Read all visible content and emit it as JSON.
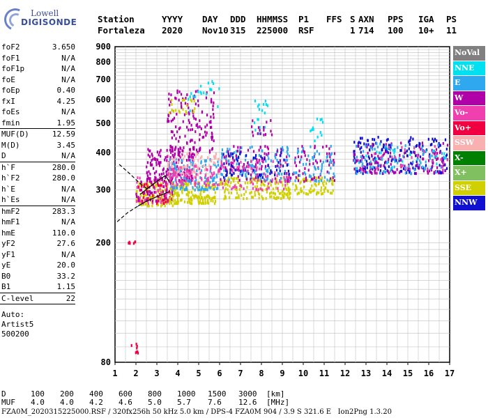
{
  "logo": {
    "line1": "Lowell",
    "line2": "DIGISONDE"
  },
  "header": {
    "row1": [
      "Station",
      "YYYY",
      "DAY",
      "DDD",
      "HHMMSS",
      "P1",
      "FFS",
      "S",
      "AXN",
      "PPS",
      "IGA",
      "PS"
    ],
    "row2": [
      "Fortaleza",
      "2020",
      "Nov10",
      "315",
      "225000",
      "RSF",
      "",
      "1",
      "714",
      "100",
      "10+",
      "11"
    ]
  },
  "params_groups": [
    [
      {
        "label": "foF2",
        "value": "3.650"
      },
      {
        "label": "foF1",
        "value": "N/A"
      },
      {
        "label": "foF1p",
        "value": "N/A"
      },
      {
        "label": "foE",
        "value": "N/A"
      },
      {
        "label": "foEp",
        "value": "0.40"
      },
      {
        "label": "fxI",
        "value": "4.25"
      },
      {
        "label": "foEs",
        "value": "N/A"
      },
      {
        "label": "fmin",
        "value": "1.95"
      }
    ],
    [
      {
        "label": "MUF(D)",
        "value": "12.59"
      },
      {
        "label": "M(D)",
        "value": "3.45"
      },
      {
        "label": "D",
        "value": "N/A"
      }
    ],
    [
      {
        "label": "h`F",
        "value": "280.0"
      },
      {
        "label": "h`F2",
        "value": "280.0"
      },
      {
        "label": "h`E",
        "value": "N/A"
      },
      {
        "label": "h`Es",
        "value": "N/A"
      }
    ],
    [
      {
        "label": "hmF2",
        "value": "283.3"
      },
      {
        "label": "hmF1",
        "value": "N/A"
      },
      {
        "label": "hmE",
        "value": "110.0"
      },
      {
        "label": "yF2",
        "value": "27.6"
      },
      {
        "label": "yF1",
        "value": "N/A"
      },
      {
        "label": "yE",
        "value": "20.0"
      },
      {
        "label": "B0",
        "value": "33.2"
      },
      {
        "label": "B1",
        "value": "1.15"
      }
    ],
    [
      {
        "label": "C-level",
        "value": "22"
      }
    ]
  ],
  "auto": [
    "Auto:",
    "Artist5",
    "500200"
  ],
  "legend": [
    {
      "label": "NoVal",
      "color": "#808080"
    },
    {
      "label": "NNE",
      "color": "#00e0f0"
    },
    {
      "label": "E",
      "color": "#30a8f0"
    },
    {
      "label": "W",
      "color": "#b000a8"
    },
    {
      "label": "Vo-",
      "color": "#f040b0"
    },
    {
      "label": "Vo+",
      "color": "#f00040"
    },
    {
      "label": "SSW",
      "color": "#f8b0b0"
    },
    {
      "label": "X-",
      "color": "#008000"
    },
    {
      "label": "X+",
      "color": "#80c060"
    },
    {
      "label": "SSE",
      "color": "#d0d000"
    },
    {
      "label": "NNW",
      "color": "#1010d0"
    }
  ],
  "chart_data": {
    "type": "scatter",
    "x_ticks": [
      "1",
      "2",
      "3",
      "4",
      "5",
      "6",
      "7",
      "8",
      "9",
      "10",
      "11",
      "12",
      "13",
      "14",
      "15",
      "16",
      "17"
    ],
    "y_ticks": [
      "80",
      "200",
      "300",
      "400",
      "500",
      "600",
      "700",
      "800",
      "900"
    ],
    "xlim": [
      1,
      17
    ],
    "ylim": [
      80,
      900
    ],
    "y_scale": "log",
    "grid": true,
    "clusters": [
      {
        "x": [
          1.7,
          2.2
        ],
        "y": [
          85,
          92
        ],
        "color": "#f00040",
        "n": 8
      },
      {
        "x": [
          1.6,
          2.0
        ],
        "y": [
          198,
          202
        ],
        "color": "#f00040",
        "n": 6
      },
      {
        "x": [
          2.0,
          3.8
        ],
        "y": [
          265,
          320
        ],
        "color": "#d0d000",
        "n": 120
      },
      {
        "x": [
          2.0,
          3.8
        ],
        "y": [
          270,
          330
        ],
        "color": "#f040b0",
        "n": 60
      },
      {
        "x": [
          2.0,
          3.8
        ],
        "y": [
          275,
          330
        ],
        "color": "#b000a8",
        "n": 60
      },
      {
        "x": [
          2.0,
          3.8
        ],
        "y": [
          270,
          320
        ],
        "color": "#f00040",
        "n": 30
      },
      {
        "x": [
          2.5,
          4.8
        ],
        "y": [
          320,
          420
        ],
        "color": "#b000a8",
        "n": 180
      },
      {
        "x": [
          3.5,
          5.8
        ],
        "y": [
          400,
          650
        ],
        "color": "#b000a8",
        "n": 140
      },
      {
        "x": [
          3.6,
          5.8
        ],
        "y": [
          270,
          320
        ],
        "color": "#d0d000",
        "n": 160
      },
      {
        "x": [
          3.5,
          6.0
        ],
        "y": [
          300,
          380
        ],
        "color": "#30a8f0",
        "n": 120
      },
      {
        "x": [
          3.5,
          6.0
        ],
        "y": [
          330,
          400
        ],
        "color": "#f8b0b0",
        "n": 80
      },
      {
        "x": [
          3.5,
          6.0
        ],
        "y": [
          310,
          360
        ],
        "color": "#f040b0",
        "n": 80
      },
      {
        "x": [
          4.5,
          6.0
        ],
        "y": [
          550,
          690
        ],
        "color": "#00e0f0",
        "n": 20
      },
      {
        "x": [
          3.6,
          5.0
        ],
        "y": [
          540,
          600
        ],
        "color": "#d0d000",
        "n": 20
      },
      {
        "x": [
          6.0,
          9.4
        ],
        "y": [
          280,
          330
        ],
        "color": "#d0d000",
        "n": 160
      },
      {
        "x": [
          6.0,
          9.4
        ],
        "y": [
          320,
          420
        ],
        "color": "#30a8f0",
        "n": 120
      },
      {
        "x": [
          6.0,
          9.4
        ],
        "y": [
          320,
          420
        ],
        "color": "#b000a8",
        "n": 90
      },
      {
        "x": [
          6.0,
          9.4
        ],
        "y": [
          300,
          380
        ],
        "color": "#f040b0",
        "n": 80
      },
      {
        "x": [
          6.0,
          9.4
        ],
        "y": [
          330,
          400
        ],
        "color": "#1010d0",
        "n": 60
      },
      {
        "x": [
          7.5,
          8.5
        ],
        "y": [
          460,
          600
        ],
        "color": "#00e0f0",
        "n": 18
      },
      {
        "x": [
          7.5,
          8.5
        ],
        "y": [
          450,
          520
        ],
        "color": "#b000a8",
        "n": 16
      },
      {
        "x": [
          9.5,
          11.5
        ],
        "y": [
          290,
          330
        ],
        "color": "#d0d000",
        "n": 80
      },
      {
        "x": [
          9.5,
          11.5
        ],
        "y": [
          320,
          420
        ],
        "color": "#b000a8",
        "n": 60
      },
      {
        "x": [
          9.5,
          11.5
        ],
        "y": [
          320,
          420
        ],
        "color": "#30a8f0",
        "n": 60
      },
      {
        "x": [
          10.3,
          11.0
        ],
        "y": [
          430,
          520
        ],
        "color": "#00e0f0",
        "n": 12
      },
      {
        "x": [
          12.4,
          16.9
        ],
        "y": [
          340,
          450
        ],
        "color": "#1010d0",
        "n": 200
      },
      {
        "x": [
          12.4,
          16.9
        ],
        "y": [
          340,
          430
        ],
        "color": "#b000a8",
        "n": 120
      },
      {
        "x": [
          12.4,
          16.9
        ],
        "y": [
          340,
          430
        ],
        "color": "#30a8f0",
        "n": 80
      },
      {
        "x": [
          12.4,
          16.9
        ],
        "y": [
          350,
          420
        ],
        "color": "#00e0f0",
        "n": 30
      },
      {
        "x": [
          12.4,
          16.9
        ],
        "y": [
          350,
          420
        ],
        "color": "#f040b0",
        "n": 30
      }
    ],
    "traces": [
      {
        "color": "#000000",
        "dash": false,
        "points": [
          [
            2.1,
            265
          ],
          [
            2.5,
            275
          ],
          [
            3.0,
            285
          ],
          [
            3.6,
            296
          ]
        ]
      },
      {
        "color": "#000000",
        "dash": true,
        "points": [
          [
            1.1,
            235
          ],
          [
            1.6,
            252
          ],
          [
            2.1,
            265
          ]
        ]
      },
      {
        "color": "#000000",
        "dash": true,
        "points": [
          [
            1.2,
            365
          ],
          [
            1.7,
            340
          ],
          [
            2.2,
            315
          ],
          [
            2.6,
            300
          ]
        ]
      },
      {
        "color": "#000000",
        "dash": false,
        "points": [
          [
            2.2,
            290
          ],
          [
            2.6,
            305
          ],
          [
            3.0,
            320
          ],
          [
            3.4,
            335
          ],
          [
            3.6,
            320
          ]
        ]
      }
    ]
  },
  "footer": {
    "d_label": "D",
    "d_values": [
      "100",
      "200",
      "400",
      "600",
      "800",
      "1000",
      "1500",
      "3000",
      "[km]"
    ],
    "muf_label": "MUF",
    "muf_values": [
      "4.0",
      "4.0",
      "4.2",
      "4.6",
      "5.0",
      "5.7",
      "7.6",
      "12.6",
      "[MHz]"
    ],
    "info": "FZA0M_2020315225000.RSF / 320fx256h 50 kHz 5.0 km / DPS-4 FZA0M 904 / 3.9 S 321.6 E   Ion2Png 1.3.20"
  }
}
